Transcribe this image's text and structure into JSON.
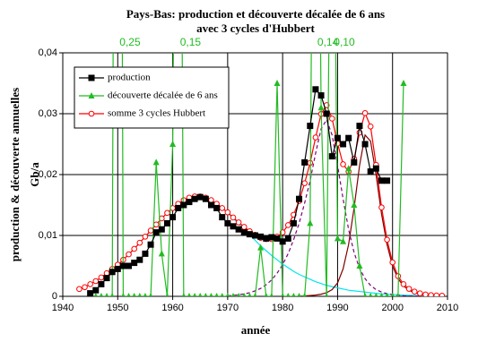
{
  "chart_data": {
    "type": "line",
    "title": "Pays-Bas: production et découverte décalée de 6 ans",
    "subtitle": "avec 3 cycles d'Hubbert",
    "y_label": "production & découverte annuelles",
    "y_unit": "Gb/a",
    "x_label": "année",
    "xlim": [
      1940,
      2010
    ],
    "xticks": [
      1940,
      1950,
      1960,
      1970,
      1980,
      1990,
      2000,
      2010
    ],
    "ylim": [
      0,
      0.04
    ],
    "yticks": [
      0,
      {
        "value": 0.01,
        "label": "0,01"
      },
      {
        "value": 0.02,
        "label": "0,02"
      },
      {
        "value": 0.03,
        "label": "0,03"
      },
      {
        "value": 0.04,
        "label": "0,04"
      }
    ],
    "grid": true,
    "legend": "upper left",
    "series": [
      {
        "color": "#00e5ee",
        "x": [
          1943,
          1944,
          1945,
          1946,
          1947,
          1948,
          1949,
          1950,
          1951,
          1952,
          1953,
          1954,
          1955,
          1956,
          1957,
          1958,
          1959,
          1960,
          1961,
          1962,
          1963,
          1964,
          1965,
          1966,
          1967,
          1968,
          1969,
          1970,
          1971,
          1972,
          1973,
          1974,
          1975,
          1976,
          1977,
          1978,
          1979,
          1980,
          1981,
          1982,
          1983,
          1984,
          1985,
          1986,
          1987,
          1988,
          1989,
          1990,
          1991,
          1992,
          1993,
          1994,
          1995,
          1996,
          1997,
          1998,
          1999,
          2000,
          2001,
          2002,
          2003,
          2004,
          2005,
          2006,
          2007,
          2008,
          2009
        ],
        "values": [
          0.0012,
          0.0015,
          0.002,
          0.0025,
          0.0031,
          0.0038,
          0.0045,
          0.0052,
          0.006,
          0.0069,
          0.0078,
          0.0088,
          0.0098,
          0.0108,
          0.0118,
          0.0128,
          0.0137,
          0.0145,
          0.0152,
          0.0158,
          0.0162,
          0.0164,
          0.0164,
          0.0162,
          0.0158,
          0.0152,
          0.0145,
          0.0137,
          0.0128,
          0.0119,
          0.011,
          0.0101,
          0.0092,
          0.0083,
          0.0075,
          0.0067,
          0.006,
          0.0053,
          0.0047,
          0.0041,
          0.0036,
          0.0032,
          0.0028,
          0.0024,
          0.0021,
          0.0018,
          0.0016,
          0.0014,
          0.0012,
          0.001,
          0.0009,
          0.0008,
          0.0007,
          0.0006,
          0.0005,
          0.0004,
          0.00035,
          0.0003,
          0.00025,
          0.0002,
          0.00017,
          0.00014,
          0.00012,
          0.0001,
          8e-05,
          7e-05,
          6e-05
        ]
      },
      {
        "color": "#800080",
        "dash": "4 3",
        "x": [
          1970,
          1971,
          1972,
          1973,
          1974,
          1975,
          1976,
          1977,
          1978,
          1979,
          1980,
          1981,
          1982,
          1983,
          1984,
          1985,
          1986,
          1987,
          1988,
          1989,
          1990,
          1991,
          1992,
          1993,
          1994,
          1995,
          1996,
          1997,
          1998,
          1999,
          2000,
          2001,
          2002,
          2003,
          2004,
          2005
        ],
        "values": [
          0.0001,
          0.00015,
          0.00025,
          0.0004,
          0.0006,
          0.0009,
          0.0013,
          0.0019,
          0.0027,
          0.0038,
          0.0052,
          0.007,
          0.0093,
          0.012,
          0.0153,
          0.019,
          0.0235,
          0.0275,
          0.029,
          0.0265,
          0.0215,
          0.016,
          0.011,
          0.0072,
          0.0046,
          0.0029,
          0.0018,
          0.0011,
          0.0007,
          0.00045,
          0.00028,
          0.00017,
          0.0001,
          6e-05,
          4e-05,
          2e-05
        ]
      },
      {
        "color": "#800000",
        "x": [
          1983,
          1984,
          1985,
          1986,
          1987,
          1988,
          1989,
          1990,
          1991,
          1992,
          1993,
          1994,
          1995,
          1996,
          1997,
          1998,
          1999,
          2000,
          2001,
          2002,
          2003,
          2004,
          2005,
          2006,
          2007,
          2008,
          2009
        ],
        "values": [
          5e-05,
          8e-05,
          0.00013,
          0.0002,
          0.00035,
          0.0006,
          0.0011,
          0.0022,
          0.0045,
          0.0085,
          0.0145,
          0.0215,
          0.0265,
          0.0255,
          0.02,
          0.0135,
          0.0085,
          0.005,
          0.0029,
          0.0017,
          0.001,
          0.0006,
          0.00035,
          0.0002,
          0.00012,
          7e-05,
          4e-05
        ]
      },
      {
        "name": "somme  3 cycles Hubbert",
        "color": "#ff0000",
        "marker": "circle",
        "x": [
          1943,
          1944,
          1945,
          1946,
          1947,
          1948,
          1949,
          1950,
          1951,
          1952,
          1953,
          1954,
          1955,
          1956,
          1957,
          1958,
          1959,
          1960,
          1961,
          1962,
          1963,
          1964,
          1965,
          1966,
          1967,
          1968,
          1969,
          1970,
          1971,
          1972,
          1973,
          1974,
          1975,
          1976,
          1977,
          1978,
          1979,
          1980,
          1981,
          1982,
          1983,
          1984,
          1985,
          1986,
          1987,
          1988,
          1989,
          1990,
          1991,
          1992,
          1993,
          1994,
          1995,
          1996,
          1997,
          1998,
          1999,
          2000,
          2001,
          2002,
          2003,
          2004,
          2005,
          2006,
          2007,
          2008,
          2009
        ],
        "values": [
          0.0012,
          0.0015,
          0.002,
          0.0025,
          0.0031,
          0.0038,
          0.0045,
          0.0052,
          0.006,
          0.0069,
          0.0078,
          0.0088,
          0.0098,
          0.0108,
          0.0118,
          0.0128,
          0.0137,
          0.0145,
          0.0152,
          0.0158,
          0.0162,
          0.0164,
          0.0164,
          0.0162,
          0.0158,
          0.0152,
          0.0145,
          0.0138,
          0.01295,
          0.01215,
          0.0114,
          0.0107,
          0.0101,
          0.0096,
          0.0094,
          0.0094,
          0.0098,
          0.0105,
          0.0117,
          0.0134,
          0.01565,
          0.01858,
          0.02193,
          0.0261,
          0.02995,
          0.0314,
          0.0292,
          0.0251,
          0.0217,
          0.0205,
          0.0226,
          0.0269,
          0.0301,
          0.0279,
          0.0216,
          0.0146,
          0.0093,
          0.00558,
          0.00332,
          0.002,
          0.00123,
          0.00078,
          0.00049,
          0.0003,
          0.0002,
          0.00014,
          0.0001
        ]
      },
      {
        "name": "découverte décalée de 6 ans",
        "color": "#22bb22",
        "marker": "triangle",
        "x": [
          1945,
          1946,
          1947,
          1948,
          1949,
          1950,
          1951,
          1952,
          1953,
          1954,
          1955,
          1956,
          1957,
          1958,
          1959,
          1960,
          1961,
          1962,
          1963,
          1964,
          1965,
          1966,
          1967,
          1968,
          1969,
          1970,
          1971,
          1972,
          1973,
          1974,
          1975,
          1976,
          1977,
          1978,
          1979,
          1980,
          1981,
          1982,
          1983,
          1984,
          1985,
          1986,
          1987,
          1988,
          1989,
          1990,
          1991,
          1992,
          1993,
          1994,
          1995,
          1996,
          1997,
          1998,
          1999,
          2000,
          2001,
          2002
        ],
        "values": [
          0,
          0,
          0,
          0,
          0,
          0.25,
          0,
          0,
          0,
          0,
          0,
          0,
          0.022,
          0.007,
          0,
          0.025,
          0.15,
          0,
          0,
          0,
          0,
          0,
          0,
          0,
          0,
          0,
          0,
          0,
          0,
          0,
          0,
          0.008,
          0,
          0,
          0.035,
          0,
          0,
          0,
          0,
          0,
          0.012,
          0.14,
          0.031,
          0,
          0.1,
          0.0095,
          0.009,
          0.021,
          0.015,
          0.005,
          0,
          0,
          0,
          0,
          0,
          0,
          0,
          0.035
        ],
        "value_labels": [
          null,
          null,
          null,
          null,
          null,
          "0,25",
          null,
          null,
          null,
          null,
          null,
          null,
          null,
          null,
          null,
          null,
          "0,15",
          null,
          null,
          null,
          null,
          null,
          null,
          null,
          null,
          null,
          null,
          null,
          null,
          null,
          null,
          null,
          null,
          null,
          null,
          null,
          null,
          null,
          null,
          null,
          null,
          "0,14",
          null,
          null,
          "0,10",
          null,
          null,
          null,
          null,
          null,
          null,
          null,
          null,
          null,
          null,
          null,
          null,
          null
        ]
      },
      {
        "name": "production",
        "color": "#000000",
        "marker": "square",
        "x": [
          1945,
          1946,
          1947,
          1948,
          1949,
          1950,
          1951,
          1952,
          1953,
          1954,
          1955,
          1956,
          1957,
          1958,
          1959,
          1960,
          1961,
          1962,
          1963,
          1964,
          1965,
          1966,
          1967,
          1968,
          1969,
          1970,
          1971,
          1972,
          1973,
          1974,
          1975,
          1976,
          1977,
          1978,
          1979,
          1980,
          1981,
          1982,
          1983,
          1984,
          1985,
          1986,
          1987,
          1988,
          1989,
          1990,
          1991,
          1992,
          1993,
          1994,
          1995,
          1996,
          1997,
          1998,
          1999
        ],
        "values": [
          0.0005,
          0.001,
          0.002,
          0.003,
          0.004,
          0.0045,
          0.005,
          0.005,
          0.0055,
          0.006,
          0.007,
          0.0085,
          0.0105,
          0.011,
          0.012,
          0.013,
          0.0145,
          0.015,
          0.0155,
          0.016,
          0.0163,
          0.016,
          0.015,
          0.0145,
          0.013,
          0.012,
          0.0115,
          0.011,
          0.0105,
          0.0102,
          0.01,
          0.0098,
          0.0095,
          0.0097,
          0.0095,
          0.009,
          0.0095,
          0.012,
          0.016,
          0.022,
          0.028,
          0.034,
          0.033,
          0.03,
          0.023,
          0.026,
          0.025,
          0.026,
          0.022,
          0.028,
          0.025,
          0.0205,
          0.021,
          0.019,
          0.019
        ]
      }
    ]
  }
}
